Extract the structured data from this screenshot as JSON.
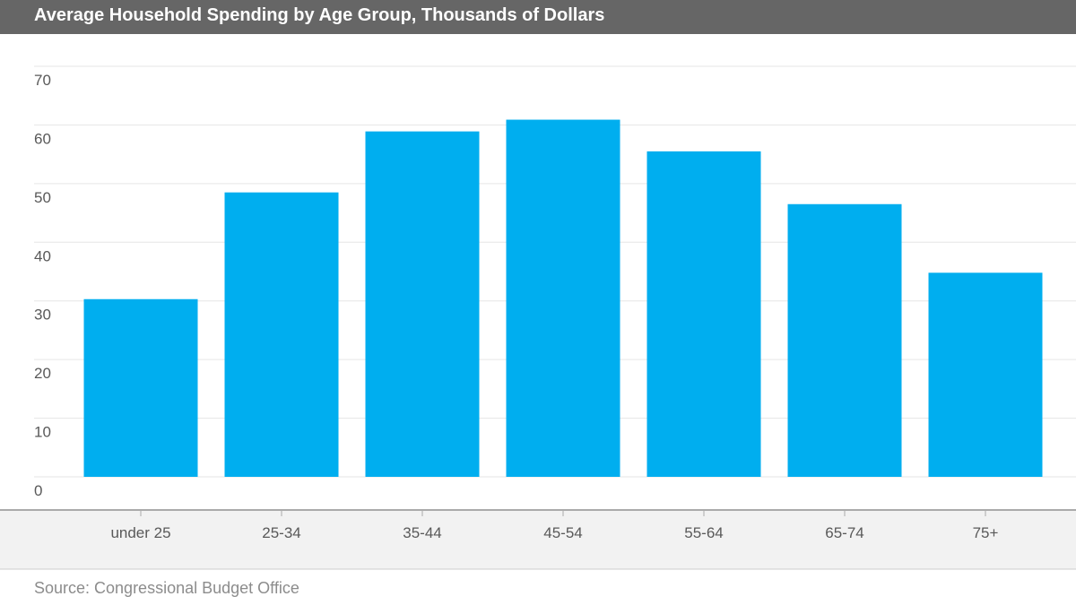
{
  "chart_data": {
    "type": "bar",
    "title": "Average Household Spending by Age Group, Thousands of Dollars",
    "categories": [
      "under 25",
      "25-34",
      "35-44",
      "45-54",
      "55-64",
      "65-74",
      "75+"
    ],
    "values": [
      30.3,
      48.5,
      58.9,
      60.9,
      55.5,
      46.5,
      34.8
    ],
    "y_ticks": [
      0,
      10,
      20,
      30,
      40,
      50,
      60,
      70
    ],
    "ylim": [
      0,
      70
    ],
    "xlabel": "",
    "ylabel": "",
    "grid": true,
    "bar_color": "#00AEEF"
  },
  "source": "Source: Congressional Budget Office",
  "colors": {
    "title_bar": "#666666",
    "axis_band": "#f2f2f2",
    "gridline": "#e6e6e6",
    "axis_line": "#aaaaaa"
  }
}
